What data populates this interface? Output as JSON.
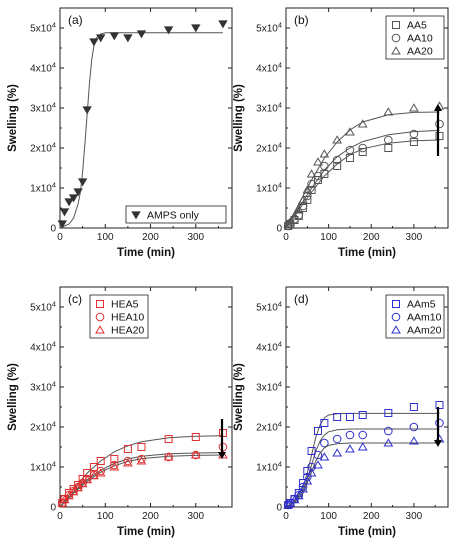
{
  "chart_data": [
    {
      "type": "scatter",
      "panel_label": "(a)",
      "xlabel": "Time (min)",
      "ylabel": "Swelling (%)",
      "xlim": [
        0,
        380
      ],
      "ylim": [
        0,
        55000
      ],
      "x_ticks": [
        "0",
        "100",
        "200",
        "300"
      ],
      "y_ticks": [
        "0",
        "1x10^4",
        "2x10^4",
        "3x10^4",
        "4x10^4",
        "5x10^4"
      ],
      "legend_position": "bottom-right",
      "colors": {
        "main": "#333333",
        "fit": "#555555"
      },
      "series": [
        {
          "name": "AMPS only",
          "marker": "triangle-down-filled",
          "x": [
            5,
            10,
            20,
            30,
            40,
            50,
            60,
            75,
            90,
            120,
            150,
            180,
            240,
            300,
            360
          ],
          "y": [
            1000,
            4000,
            6500,
            7500,
            9000,
            11500,
            29500,
            46500,
            47500,
            48000,
            47500,
            48500,
            49500,
            50000,
            51000
          ],
          "fit_x": [
            0,
            20,
            30,
            40,
            45,
            50,
            55,
            60,
            65,
            70,
            75,
            80,
            90,
            100,
            120,
            200,
            360
          ],
          "fit_y": [
            0,
            1000,
            2500,
            6000,
            9000,
            14000,
            21000,
            28500,
            36000,
            42000,
            45500,
            47500,
            48500,
            48800,
            48800,
            48800,
            48800
          ]
        }
      ]
    },
    {
      "type": "scatter",
      "panel_label": "(b)",
      "xlabel": "Time (min)",
      "ylabel": "Swelling (%)",
      "xlim": [
        0,
        380
      ],
      "ylim": [
        0,
        55000
      ],
      "x_ticks": [
        "0",
        "100",
        "200",
        "300"
      ],
      "y_ticks": [
        "0",
        "1x10^4",
        "2x10^4",
        "3x10^4",
        "4x10^4",
        "5x10^4"
      ],
      "legend_position": "top-right",
      "arrow": "up",
      "colors": {
        "main": "#555555",
        "fit": "#555555"
      },
      "series": [
        {
          "name": "AA5",
          "marker": "square-open",
          "x": [
            5,
            10,
            20,
            30,
            40,
            50,
            60,
            75,
            90,
            120,
            150,
            180,
            240,
            300,
            360
          ],
          "y": [
            500,
            1000,
            2000,
            3000,
            5000,
            7000,
            9500,
            12000,
            13500,
            15500,
            17500,
            19000,
            20000,
            21500,
            23000
          ],
          "fit_x": [
            0,
            30,
            60,
            90,
            120,
            150,
            180,
            240,
            300,
            360
          ],
          "fit_y": [
            0,
            4500,
            9000,
            13000,
            16000,
            18300,
            19800,
            21200,
            21800,
            22000
          ]
        },
        {
          "name": "AA10",
          "marker": "circle-open",
          "x": [
            5,
            10,
            20,
            30,
            40,
            50,
            60,
            75,
            90,
            120,
            150,
            180,
            240,
            300,
            360
          ],
          "y": [
            500,
            1200,
            2200,
            3200,
            5500,
            8000,
            11000,
            13000,
            15500,
            17000,
            19500,
            20000,
            22000,
            23500,
            26000
          ],
          "fit_x": [
            0,
            30,
            60,
            90,
            120,
            150,
            180,
            240,
            300,
            360
          ],
          "fit_y": [
            0,
            5000,
            10000,
            14500,
            17800,
            20000,
            21600,
            23300,
            24100,
            24400
          ]
        },
        {
          "name": "AA20",
          "marker": "triangle-open",
          "x": [
            5,
            10,
            20,
            30,
            40,
            50,
            60,
            75,
            90,
            120,
            150,
            180,
            240,
            300,
            360
          ],
          "y": [
            800,
            1500,
            3000,
            4500,
            7000,
            9500,
            13500,
            16500,
            18500,
            22000,
            24000,
            26000,
            29000,
            30000,
            30500
          ],
          "fit_x": [
            0,
            30,
            60,
            90,
            120,
            150,
            180,
            240,
            300,
            360
          ],
          "fit_y": [
            0,
            6000,
            12000,
            17500,
            21500,
            24500,
            26500,
            28300,
            28900,
            29000
          ]
        }
      ]
    },
    {
      "type": "scatter",
      "panel_label": "(c)",
      "xlabel": "Time (min)",
      "ylabel": "Swelling (%)",
      "xlim": [
        0,
        380
      ],
      "ylim": [
        0,
        55000
      ],
      "x_ticks": [
        "0",
        "100",
        "200",
        "300"
      ],
      "y_ticks": [
        "0",
        "1x10^4",
        "2x10^4",
        "3x10^4",
        "4x10^4",
        "5x10^4"
      ],
      "legend_position": "top-left",
      "arrow": "down",
      "colors": {
        "main": "#e03030",
        "fit": "#555555"
      },
      "series": [
        {
          "name": "HEA5",
          "marker": "square-open",
          "x": [
            5,
            10,
            20,
            30,
            40,
            50,
            60,
            75,
            90,
            120,
            150,
            180,
            240,
            300,
            360
          ],
          "y": [
            1000,
            2000,
            3500,
            4500,
            5500,
            7000,
            8500,
            10000,
            11500,
            12000,
            14500,
            15000,
            17000,
            17500,
            18500
          ],
          "fit_x": [
            0,
            30,
            60,
            90,
            120,
            150,
            180,
            240,
            300,
            360
          ],
          "fit_y": [
            0,
            4500,
            8500,
            11500,
            13800,
            15300,
            16300,
            17300,
            17700,
            17800
          ]
        },
        {
          "name": "HEA10",
          "marker": "circle-open",
          "x": [
            5,
            10,
            20,
            30,
            40,
            50,
            60,
            75,
            90,
            120,
            150,
            180,
            240,
            300,
            360
          ],
          "y": [
            1000,
            2000,
            3000,
            4000,
            5000,
            6000,
            7000,
            8000,
            9000,
            10500,
            11500,
            12000,
            12500,
            13000,
            15000
          ],
          "fit_x": [
            0,
            30,
            60,
            90,
            120,
            150,
            180,
            240,
            300,
            360
          ],
          "fit_y": [
            0,
            3700,
            6800,
            9200,
            10900,
            12000,
            12700,
            13300,
            13500,
            13600
          ]
        },
        {
          "name": "HEA20",
          "marker": "triangle-open",
          "x": [
            5,
            10,
            20,
            30,
            40,
            50,
            60,
            75,
            90,
            120,
            150,
            180,
            240,
            300,
            360
          ],
          "y": [
            1000,
            1800,
            2800,
            3800,
            4800,
            5800,
            6800,
            7800,
            8500,
            10000,
            11000,
            11500,
            12500,
            13000,
            13000
          ],
          "fit_x": [
            0,
            30,
            60,
            90,
            120,
            150,
            180,
            240,
            300,
            360
          ],
          "fit_y": [
            0,
            3500,
            6400,
            8700,
            10300,
            11400,
            12100,
            12700,
            12900,
            13000
          ]
        }
      ]
    },
    {
      "type": "scatter",
      "panel_label": "(d)",
      "xlabel": "Time (min)",
      "ylabel": "Swelling (%)",
      "xlim": [
        0,
        380
      ],
      "ylim": [
        0,
        55000
      ],
      "x_ticks": [
        "0",
        "100",
        "200",
        "300"
      ],
      "y_ticks": [
        "0",
        "1x10^4",
        "2x10^4",
        "3x10^4",
        "4x10^4",
        "5x10^4"
      ],
      "legend_position": "top-right",
      "arrow": "down",
      "colors": {
        "main": "#3030d0",
        "fit": "#555555"
      },
      "series": [
        {
          "name": "AAm5",
          "marker": "square-open",
          "x": [
            5,
            10,
            20,
            30,
            40,
            50,
            60,
            75,
            90,
            120,
            150,
            180,
            240,
            300,
            360
          ],
          "y": [
            500,
            1000,
            2000,
            3500,
            6000,
            9000,
            14000,
            19000,
            21000,
            22500,
            22500,
            23000,
            23500,
            25000,
            25500
          ],
          "fit_x": [
            0,
            20,
            40,
            50,
            60,
            70,
            80,
            90,
            100,
            120,
            150,
            200,
            360
          ],
          "fit_y": [
            0,
            1500,
            5000,
            8500,
            13000,
            17500,
            20500,
            22300,
            23000,
            23300,
            23400,
            23400,
            23400
          ]
        },
        {
          "name": "AAm10",
          "marker": "circle-open",
          "x": [
            5,
            10,
            20,
            30,
            40,
            50,
            60,
            75,
            90,
            120,
            150,
            180,
            240,
            300,
            360
          ],
          "y": [
            500,
            1000,
            2000,
            3000,
            5000,
            7500,
            10000,
            13000,
            16000,
            17000,
            18000,
            18000,
            19000,
            20000,
            21000
          ],
          "fit_x": [
            0,
            20,
            40,
            50,
            60,
            70,
            80,
            90,
            100,
            120,
            150,
            200,
            360
          ],
          "fit_y": [
            0,
            1300,
            4200,
            7000,
            10500,
            14000,
            16500,
            18000,
            18800,
            19300,
            19500,
            19500,
            19500
          ]
        },
        {
          "name": "AAm20",
          "marker": "triangle-open",
          "x": [
            5,
            10,
            20,
            30,
            40,
            50,
            60,
            75,
            90,
            120,
            150,
            180,
            240,
            300,
            360
          ],
          "y": [
            500,
            1000,
            1800,
            2800,
            4500,
            6500,
            8500,
            10500,
            12500,
            13500,
            14500,
            15000,
            16000,
            16500,
            17000
          ],
          "fit_x": [
            0,
            20,
            40,
            50,
            60,
            70,
            80,
            90,
            100,
            120,
            150,
            200,
            360
          ],
          "fit_y": [
            0,
            1100,
            3500,
            6000,
            8800,
            11500,
            13500,
            14800,
            15400,
            15800,
            16000,
            16000,
            16000
          ]
        }
      ]
    }
  ]
}
